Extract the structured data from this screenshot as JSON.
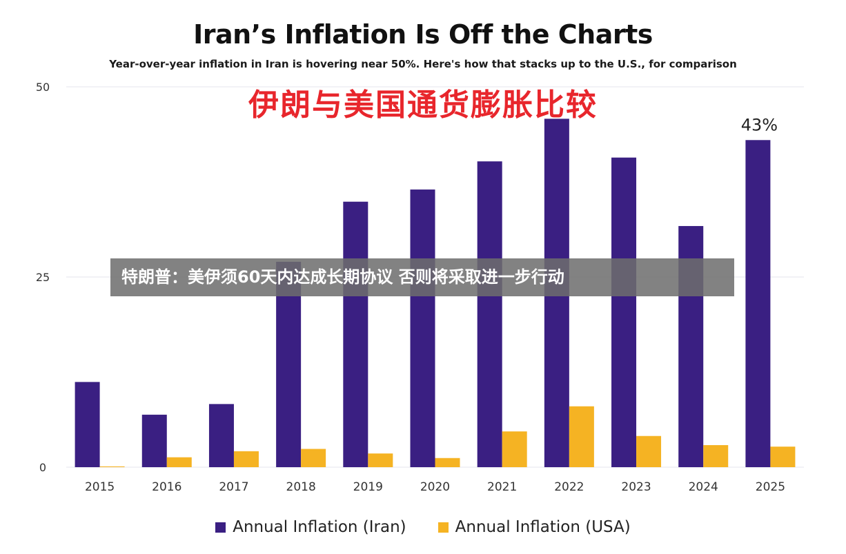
{
  "chart_data": {
    "type": "bar",
    "title": "Iran’s Inflation Is Off the Charts",
    "subtitle": "Year-over-year inflation in Iran is hovering near 50%. Here's how that stacks up to the U.S., for comparison",
    "xlabel": "",
    "ylabel": "",
    "categories": [
      "2015",
      "2016",
      "2017",
      "2018",
      "2019",
      "2020",
      "2021",
      "2022",
      "2023",
      "2024",
      "2025"
    ],
    "series": [
      {
        "name": "Annual Inflation (Iran)",
        "color": "#3a1f82",
        "values": [
          11.2,
          6.9,
          8.3,
          27.0,
          34.9,
          36.5,
          40.2,
          45.8,
          40.7,
          31.7,
          43.0
        ]
      },
      {
        "name": "Annual Inflation (USA)",
        "color": "#f5b323",
        "values": [
          0.1,
          1.3,
          2.1,
          2.4,
          1.8,
          1.2,
          4.7,
          8.0,
          4.1,
          2.9,
          2.7
        ]
      }
    ],
    "ylim": [
      0,
      50
    ],
    "yticks": [
      0,
      25,
      50
    ],
    "annotation": {
      "category": "2025",
      "text": "43%"
    },
    "grid": true,
    "legend_position": "bottom"
  },
  "overlay_title": "伊朗与美国通货膨胀比较",
  "banner_text": "特朗普：美伊须60天内达成长期协议 否则将采取进一步行动"
}
